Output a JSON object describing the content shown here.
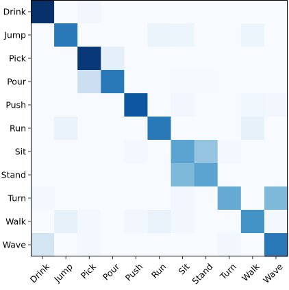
{
  "chart_data": {
    "type": "heatmap",
    "title": "",
    "xlabel": "",
    "ylabel": "",
    "grid": false,
    "legend": "none",
    "colormap": "Blues",
    "row_labels": [
      "Drink",
      "Jump",
      "Pick",
      "Pour",
      "Push",
      "Run",
      "Sit",
      "Stand",
      "Turn",
      "Walk",
      "Wave"
    ],
    "col_labels": [
      "Drink",
      "Jump",
      "Pick",
      "Pour",
      "Push",
      "Run",
      "Sit",
      "Stand",
      "Turn",
      "Walk",
      "Wave"
    ],
    "x_tick_rotation_deg": 45,
    "value_range": [
      0,
      1
    ],
    "values": [
      [
        1.0,
        0.0,
        0.03,
        0.0,
        0.0,
        0.0,
        0.0,
        0.0,
        0.0,
        0.0,
        0.0
      ],
      [
        0.0,
        0.72,
        0.0,
        0.0,
        0.0,
        0.06,
        0.05,
        0.0,
        0.0,
        0.05,
        0.0
      ],
      [
        0.0,
        0.0,
        0.97,
        0.09,
        0.0,
        0.0,
        0.0,
        0.0,
        0.0,
        0.0,
        0.0
      ],
      [
        0.0,
        0.0,
        0.22,
        0.72,
        0.0,
        0.0,
        0.01,
        0.01,
        0.0,
        0.0,
        0.0
      ],
      [
        0.0,
        0.0,
        0.0,
        0.0,
        0.85,
        0.0,
        0.03,
        0.0,
        0.0,
        0.04,
        0.03
      ],
      [
        0.0,
        0.07,
        0.0,
        0.0,
        0.0,
        0.72,
        0.0,
        0.0,
        0.0,
        0.08,
        0.0
      ],
      [
        0.0,
        0.0,
        0.0,
        0.0,
        0.02,
        0.0,
        0.55,
        0.4,
        0.02,
        0.0,
        0.0
      ],
      [
        0.0,
        0.0,
        0.0,
        0.0,
        0.0,
        0.0,
        0.45,
        0.55,
        0.0,
        0.0,
        0.0
      ],
      [
        0.02,
        0.0,
        0.0,
        0.0,
        0.0,
        0.0,
        0.03,
        0.0,
        0.52,
        0.0,
        0.45
      ],
      [
        0.0,
        0.08,
        0.02,
        0.0,
        0.03,
        0.07,
        0.03,
        0.0,
        0.0,
        0.62,
        0.02
      ],
      [
        0.18,
        0.0,
        0.02,
        0.0,
        0.0,
        0.0,
        0.0,
        0.0,
        0.03,
        0.0,
        0.72
      ]
    ]
  }
}
